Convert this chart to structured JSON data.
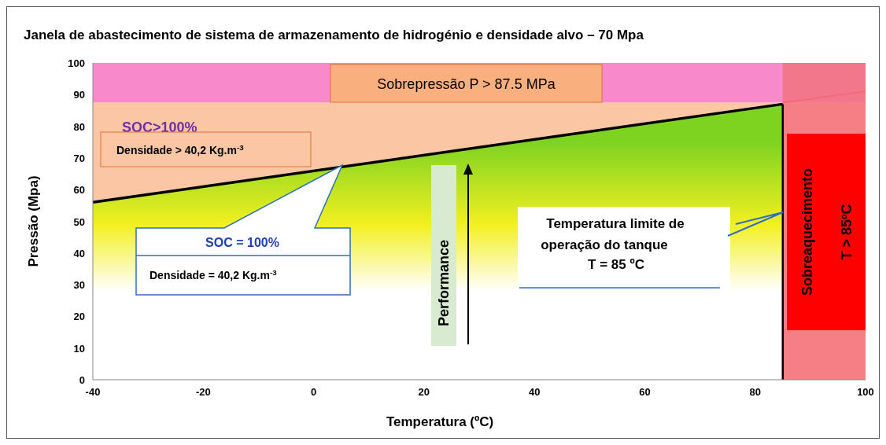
{
  "chart_data": {
    "type": "line",
    "title": "Janela de abastecimento de sistema de armazenamento de hidrogénio e densidade alvo – 70 Mpa",
    "xlabel": "Temperatura (ºC)",
    "ylabel": "Pressão (Mpa)",
    "xlim": [
      -40,
      100
    ],
    "ylim": [
      0,
      100
    ],
    "xticks": [
      -40,
      -20,
      0,
      20,
      40,
      60,
      80,
      100
    ],
    "yticks": [
      0,
      10,
      20,
      30,
      40,
      50,
      60,
      70,
      80,
      90,
      100
    ],
    "grid": false,
    "series": [
      {
        "type": "area",
        "color": "#000000",
        "x": [
          -40,
          85
        ],
        "values": [
          56,
          87
        ]
      },
      {
        "color": "#e8304a",
        "x": [
          85,
          100
        ],
        "values": [
          87.5,
          91
        ]
      }
    ],
    "bands": [
      {
        "axis": "y",
        "from": 0,
        "to": 87.5,
        "label": "SOC>100%",
        "color": "#fbc6a4"
      },
      {
        "axis": "y",
        "from": 87.5,
        "to": 100,
        "label": "Sobrepressão P > 87.5 MPa",
        "color": "#f78ac8"
      },
      {
        "axis": "x",
        "from": 85,
        "to": 100,
        "label": "Sobreaquecimento",
        "color": "#f27380"
      }
    ],
    "ref_lines": [
      {
        "axis": "x",
        "value": 85,
        "color": "#000000"
      }
    ],
    "annotations": [
      "Densidade > 40,2 Kg.m$^{-3}$",
      "SOC = 100%",
      "Densidade = 40,2 Kg.m$^{-3}$",
      "Performance",
      "Temperatura limite de",
      "operação do tanque",
      "T = 85 ºC",
      "T > 85ºC"
    ]
  }
}
